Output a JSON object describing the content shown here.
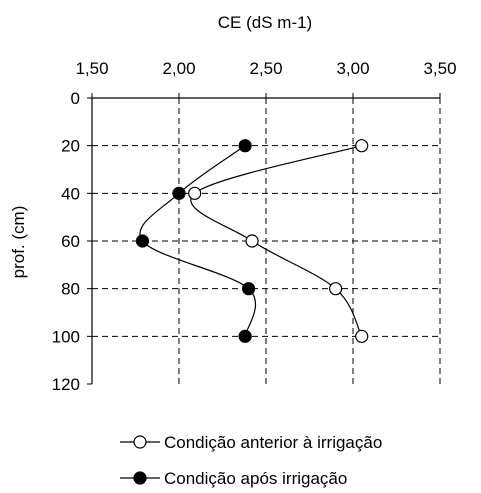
{
  "chart_data": {
    "type": "line",
    "orientation": "depth-profile",
    "xlabel": "CE (dS m-1)",
    "ylabel": "prof. (cm)",
    "x_axis_position": "top",
    "y_axis_inverted": true,
    "xlim": [
      1.5,
      3.5
    ],
    "ylim": [
      0,
      120
    ],
    "x_ticks": [
      1.5,
      2.0,
      2.5,
      3.0,
      3.5
    ],
    "x_tick_labels": [
      "1,50",
      "2,00",
      "2,50",
      "3,00",
      "3,50"
    ],
    "y_ticks": [
      0,
      20,
      40,
      60,
      80,
      100,
      120
    ],
    "y_tick_labels": [
      "0",
      "20",
      "40",
      "60",
      "80",
      "100",
      "120"
    ],
    "grid": "dashed",
    "legend_position": "bottom",
    "smooth_lines": true,
    "series": [
      {
        "name": "Condição anterior à irrigação",
        "marker": "open-circle",
        "color": "#000000",
        "points": [
          {
            "depth": 20,
            "ce": 3.05
          },
          {
            "depth": 40,
            "ce": 2.09
          },
          {
            "depth": 60,
            "ce": 2.42
          },
          {
            "depth": 80,
            "ce": 2.9
          },
          {
            "depth": 100,
            "ce": 3.05
          }
        ]
      },
      {
        "name": "Condição após irrigação",
        "marker": "filled-circle",
        "color": "#000000",
        "points": [
          {
            "depth": 20,
            "ce": 2.38
          },
          {
            "depth": 40,
            "ce": 2.0
          },
          {
            "depth": 60,
            "ce": 1.79
          },
          {
            "depth": 80,
            "ce": 2.4
          },
          {
            "depth": 100,
            "ce": 2.38
          }
        ]
      }
    ]
  }
}
